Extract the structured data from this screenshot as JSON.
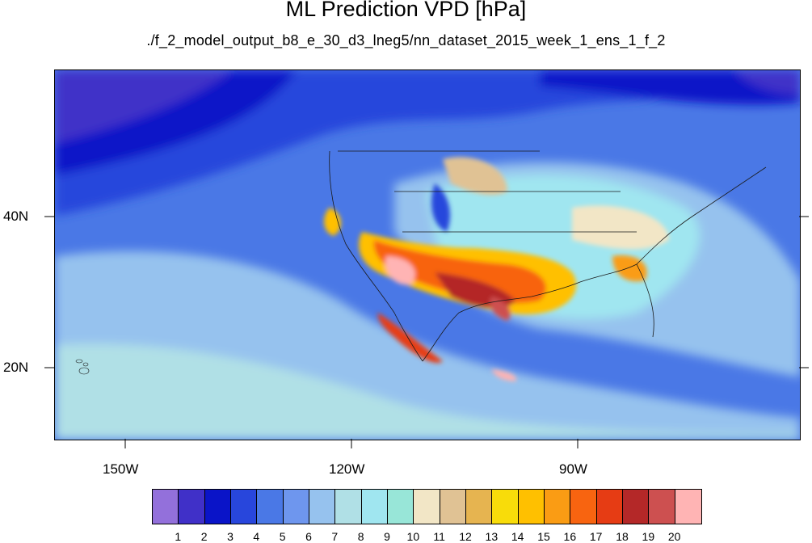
{
  "title": "ML Prediction VPD [hPa]",
  "subtitle": "./f_2_model_output_b8_e_30_d3_lneg5/nn_dataset_2015_week_1_ens_1_f_2",
  "map": {
    "region": "North America / Eastern Pacific",
    "lat_range": [
      10,
      59
    ],
    "lon_range": [
      -160,
      -61
    ],
    "lat_labels": [
      "40N",
      "20N"
    ],
    "lon_labels": [
      "150W",
      "120W",
      "90W"
    ]
  },
  "colorbar": {
    "labels": [
      "1",
      "2",
      "3",
      "4",
      "5",
      "6",
      "7",
      "8",
      "9",
      "10",
      "11",
      "12",
      "13",
      "14",
      "15",
      "16",
      "17",
      "18",
      "19",
      "20"
    ],
    "colors": [
      "#9370db",
      "#4030c8",
      "#0a14c8",
      "#2846dc",
      "#4a78e6",
      "#6e96ee",
      "#96c2ee",
      "#b0e0e6",
      "#a0e6f0",
      "#98e6d8",
      "#f2e6c6",
      "#e0c294",
      "#e6b450",
      "#f8dc0a",
      "#ffc000",
      "#fa9c14",
      "#f86410",
      "#e63c14",
      "#b42828",
      "#cd5050",
      "#ffb4b4"
    ]
  }
}
